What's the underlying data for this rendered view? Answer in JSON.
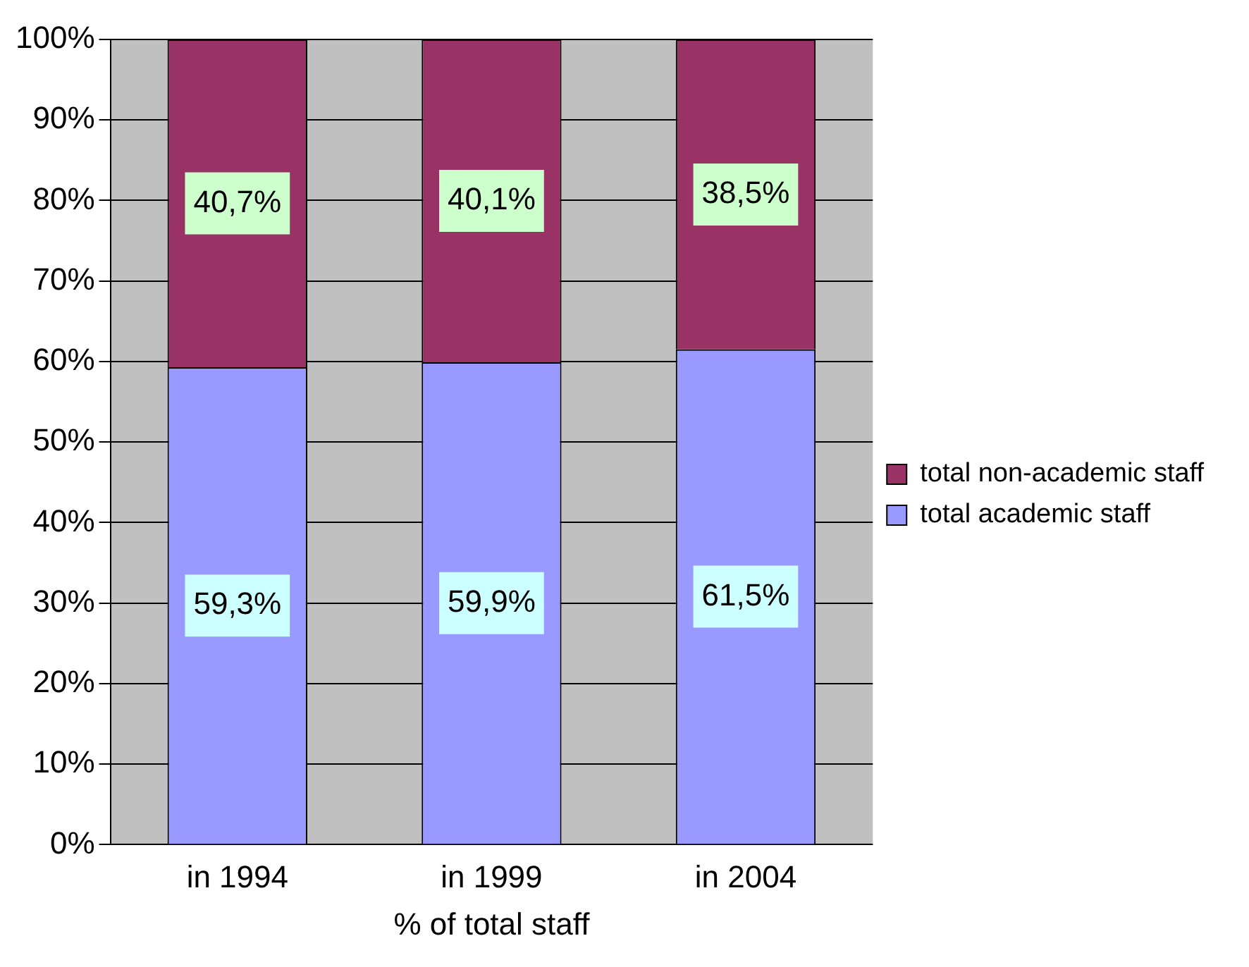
{
  "chart_data": {
    "type": "bar",
    "stacked": true,
    "categories": [
      "in 1994",
      "in 1999",
      "in 2004"
    ],
    "xlabel": "% of total staff",
    "series": [
      {
        "name": "total academic staff",
        "color": "#9999ff",
        "values": [
          59.3,
          59.9,
          61.5
        ],
        "value_labels": [
          "59,3%",
          "59,9%",
          "61,5%"
        ]
      },
      {
        "name": "total non-academic staff",
        "color": "#993366",
        "values": [
          40.7,
          40.1,
          38.5
        ],
        "value_labels": [
          "40,7%",
          "40,1%",
          "38,5%"
        ]
      }
    ],
    "ylim": [
      0,
      100
    ],
    "yticks": [
      {
        "value": 0,
        "label": "0%"
      },
      {
        "value": 10,
        "label": "10%"
      },
      {
        "value": 20,
        "label": "20%"
      },
      {
        "value": 30,
        "label": "30%"
      },
      {
        "value": 40,
        "label": "40%"
      },
      {
        "value": 50,
        "label": "50%"
      },
      {
        "value": 60,
        "label": "60%"
      },
      {
        "value": 70,
        "label": "70%"
      },
      {
        "value": 80,
        "label": "80%"
      },
      {
        "value": 90,
        "label": "90%"
      },
      {
        "value": 100,
        "label": "100%"
      }
    ],
    "grid": "y",
    "legend": "right"
  }
}
